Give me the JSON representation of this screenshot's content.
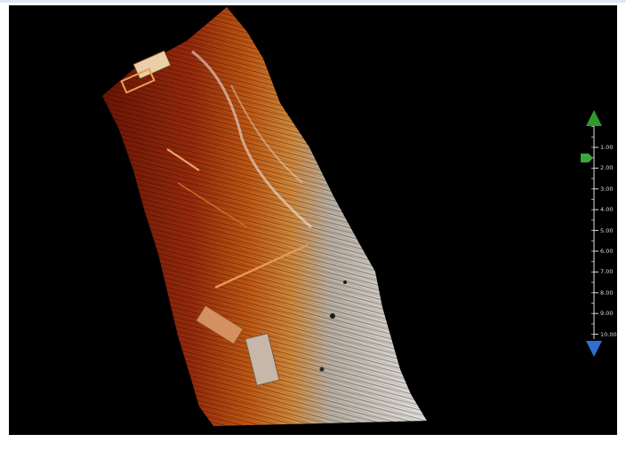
{
  "viewer": {
    "background_color": "#000000",
    "cloud_colors": {
      "low": "#7e1a08",
      "mid": "#cc6516",
      "high": "#d8d6d2"
    }
  },
  "depth_scale": {
    "up_arrow_icon": "triangle-up-icon",
    "down_arrow_icon": "triangle-down-icon",
    "marker_icon": "pentagon-marker-icon",
    "up_color": "#2e9a2e",
    "down_color": "#2f6fd0",
    "marker_color": "#3aa640",
    "marker_value": 1.5,
    "ticks": [
      "1.00",
      "2.00",
      "3.00",
      "4.00",
      "5.00",
      "6.00",
      "7.00",
      "8.00",
      "9.00",
      "10.00"
    ]
  }
}
